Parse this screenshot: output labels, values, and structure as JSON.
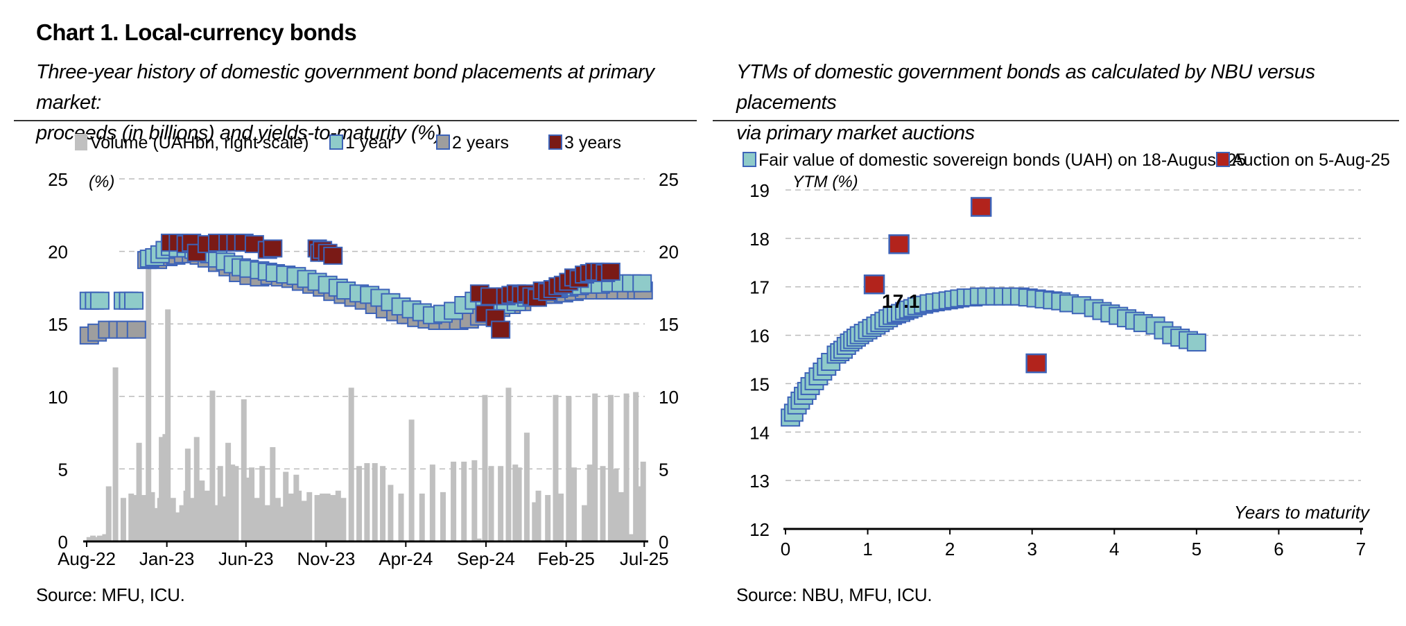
{
  "header": {
    "title": "Chart 1. Local-currency bonds",
    "subtitle_left_1": "Three-year history of domestic government bond placements at primary market:",
    "subtitle_left_2": "proceeds (in billions) and yields-to-maturity (%)",
    "subtitle_right_1": "YTMs of domestic government bonds as calculated by NBU versus placements",
    "subtitle_right_2": "via primary market auctions",
    "source_left": "Source: MFU, ICU.",
    "source_right": "Source: NBU, MFU, ICU."
  },
  "chart_data": [
    {
      "type": "bar+scatter",
      "yunit": "(%)",
      "ylim": [
        0,
        25
      ],
      "y2lim": [
        0,
        25
      ],
      "xlim": [
        0,
        1065
      ],
      "grid": true,
      "legend_position": "top",
      "x_tick_labels": [
        {
          "label": "Aug-22",
          "x": 0
        },
        {
          "label": "Jan-23",
          "x": 153
        },
        {
          "label": "Jun-23",
          "x": 304
        },
        {
          "label": "Nov-23",
          "x": 457
        },
        {
          "label": "Apr-24",
          "x": 609
        },
        {
          "label": "Sep-24",
          "x": 762
        },
        {
          "label": "Feb-25",
          "x": 915
        },
        {
          "label": "Jul-25",
          "x": 1064
        }
      ],
      "y_ticks": [
        0,
        5,
        10,
        15,
        20,
        25
      ],
      "legend": [
        {
          "name": "Volume (UAHbn, right scale)",
          "color": "#c0c0c0",
          "marker": "bar"
        },
        {
          "name": "1 year",
          "color": "#8fcbc9",
          "marker": "square"
        },
        {
          "name": "2 years",
          "color": "#9e9e9e",
          "marker": "square"
        },
        {
          "name": "3 years",
          "color": "#7a1a16",
          "marker": "square"
        }
      ],
      "series": [
        {
          "name": "Volume (UAHbn, right scale)",
          "x": [
            5,
            12,
            20,
            25,
            35,
            42,
            55,
            70,
            85,
            95,
            100,
            108,
            118,
            125,
            133,
            140,
            143,
            150,
            155,
            165,
            172,
            182,
            190,
            193,
            200,
            210,
            220,
            230,
            240,
            245,
            255,
            263,
            270,
            278,
            285,
            300,
            308,
            315,
            325,
            335,
            345,
            355,
            365,
            372,
            380,
            390,
            400,
            405,
            415,
            425,
            440,
            450,
            460,
            470,
            480,
            490,
            505,
            520,
            535,
            550,
            565,
            580,
            600,
            620,
            640,
            660,
            680,
            700,
            720,
            740,
            748,
            760,
            772,
            790,
            805,
            818,
            825,
            840,
            855,
            862,
            880,
            895,
            905,
            920,
            930,
            950,
            960,
            970,
            985,
            1000,
            1010,
            1020,
            1030,
            1040,
            1048,
            1056,
            1062
          ],
          "values": [
            0.3,
            0.4,
            0.3,
            0.4,
            0.5,
            3.8,
            12,
            3,
            3.3,
            3.2,
            6.8,
            3.2,
            19,
            3.4,
            2.3,
            3,
            7.2,
            7.4,
            16,
            3,
            2,
            2.5,
            3.5,
            6.4,
            3,
            7.2,
            4.2,
            3.5,
            10.4,
            2.5,
            5.2,
            3.1,
            6.8,
            5.3,
            5.2,
            9.8,
            4.4,
            5.1,
            3,
            5.2,
            2.5,
            6.5,
            3,
            2.4,
            4.8,
            3.3,
            4.6,
            3.5,
            2.8,
            3.4,
            3.2,
            3.3,
            3.3,
            3.2,
            3.5,
            3,
            10.6,
            5.2,
            5.4,
            5.4,
            5.2,
            3.9,
            3.3,
            8.4,
            3.3,
            5.3,
            3.4,
            5.5,
            5.5,
            5.6,
            0.2,
            10.1,
            5.2,
            5.2,
            10.6,
            5.3,
            5.1,
            7.5,
            2.7,
            3.5,
            3.2,
            10.1,
            3.3,
            10,
            5.1,
            2.5,
            5.3,
            10.2,
            5.2,
            10.1,
            5,
            3.4,
            10.2,
            0.5,
            10.3,
            3.8,
            5.5
          ]
        },
        {
          "name": "1 year",
          "x": [
            5,
            15,
            25,
            70,
            80,
            90,
            120,
            130,
            140,
            150,
            160,
            175,
            190,
            205,
            220,
            235,
            250,
            265,
            280,
            295,
            310,
            330,
            345,
            360,
            380,
            400,
            420,
            440,
            460,
            480,
            495,
            520,
            540,
            560,
            580,
            600,
            620,
            640,
            660,
            680,
            700,
            720,
            740,
            760,
            780,
            800,
            820,
            840,
            860,
            880,
            900,
            920,
            940,
            960,
            980,
            1000,
            1020,
            1040,
            1060
          ],
          "values": [
            16.6,
            16.6,
            16.6,
            16.6,
            16.6,
            16.6,
            19.5,
            19.6,
            19.8,
            20.1,
            20.3,
            20.2,
            20.2,
            20.1,
            20,
            19.8,
            19.5,
            19.3,
            19.1,
            18.9,
            18.8,
            18.7,
            18.6,
            18.5,
            18.4,
            18.3,
            18.1,
            17.9,
            17.7,
            17.5,
            17.3,
            17.1,
            17,
            16.8,
            16.5,
            16.2,
            16,
            15.8,
            15.6,
            15.7,
            15.9,
            16.3,
            16.6,
            16.4,
            16.2,
            16.3,
            16.5,
            16.8,
            17,
            17.2,
            17.4,
            17.5,
            17.6,
            17.7,
            17.7,
            17.8,
            17.8,
            17.8,
            17.8
          ]
        },
        {
          "name": "2 years",
          "x": [
            5,
            20,
            40,
            60,
            75,
            95,
            115,
            135,
            155,
            170,
            185,
            200,
            215,
            230,
            250,
            270,
            290,
            310,
            330,
            350,
            370,
            390,
            410,
            430,
            450,
            470,
            490,
            510,
            530,
            550,
            570,
            590,
            610,
            630,
            650,
            670,
            690,
            710,
            730,
            750,
            770,
            790,
            810,
            830,
            850,
            870,
            890,
            910,
            930,
            950,
            970,
            990,
            1010,
            1030,
            1050,
            1062
          ],
          "values": [
            14.2,
            14.4,
            14.6,
            14.6,
            14.6,
            14.6,
            19.4,
            19.4,
            19.6,
            19.7,
            19.8,
            19.8,
            19.7,
            19.5,
            19.2,
            18.9,
            18.5,
            18.3,
            18.2,
            18.3,
            18.2,
            18.1,
            17.9,
            17.7,
            17.5,
            17.2,
            17,
            16.8,
            16.6,
            16.3,
            16,
            15.8,
            15.6,
            15.4,
            15.3,
            15.2,
            15.2,
            15.2,
            15.3,
            15.5,
            15.8,
            16.1,
            16.3,
            16.5,
            16.8,
            17,
            17,
            17.1,
            17.2,
            17.3,
            17.3,
            17.3,
            17.3,
            17.3,
            17.3,
            17.3
          ]
        },
        {
          "name": "3 years",
          "x": [
            160,
            175,
            190,
            200,
            210,
            230,
            250,
            270,
            285,
            300,
            320,
            345,
            355,
            440,
            445,
            450,
            460,
            470,
            750,
            760,
            770,
            780,
            790,
            800,
            810,
            820,
            830,
            840,
            850,
            860,
            870,
            880,
            890,
            900,
            910,
            920,
            930,
            940,
            950,
            960,
            970,
            980,
            990,
            1000
          ],
          "values": [
            20.6,
            20.6,
            20.5,
            20.6,
            19.9,
            20.5,
            20.6,
            20.6,
            20.6,
            20.6,
            20.5,
            20.1,
            20.2,
            20.2,
            19.9,
            20.1,
            19.9,
            19.7,
            17.1,
            15.7,
            16.9,
            15.4,
            14.6,
            16.9,
            17.0,
            17.1,
            17.0,
            17.1,
            16.9,
            16.8,
            17.3,
            17.2,
            17.4,
            17.6,
            17.7,
            17.9,
            18.2,
            18.1,
            18.4,
            18.5,
            18.6,
            18.6,
            18.5,
            18.6
          ]
        }
      ]
    },
    {
      "type": "scatter",
      "xlabel": "Years to maturity",
      "ylabel": "YTM (%)",
      "xlim": [
        0,
        7
      ],
      "ylim": [
        12,
        19
      ],
      "x_ticks": [
        0,
        1,
        2,
        3,
        4,
        5,
        6,
        7
      ],
      "y_ticks": [
        12,
        13,
        14,
        15,
        16,
        17,
        18,
        19
      ],
      "grid": true,
      "legend_position": "top",
      "annotation": "17.1",
      "legend": [
        {
          "name": "Fair value of domestic sovereign bonds (UAH) on 18-August-25",
          "color": "#8fcbc9"
        },
        {
          "name": "Auction on 5-Aug-25",
          "color": "#b2231c"
        }
      ],
      "series": [
        {
          "name": "Fair value of domestic sovereign bonds (UAH) on 18-August-25",
          "x": [
            0.06,
            0.1,
            0.14,
            0.18,
            0.22,
            0.26,
            0.3,
            0.35,
            0.4,
            0.45,
            0.5,
            0.55,
            0.62,
            0.66,
            0.7,
            0.74,
            0.78,
            0.82,
            0.86,
            0.9,
            0.95,
            1.0,
            1.05,
            1.1,
            1.15,
            1.2,
            1.25,
            1.3,
            1.35,
            1.4,
            1.45,
            1.5,
            1.55,
            1.6,
            1.68,
            1.75,
            1.82,
            1.9,
            1.98,
            2.05,
            2.12,
            2.2,
            2.28,
            2.36,
            2.45,
            2.55,
            2.65,
            2.75,
            2.85,
            2.95,
            3.05,
            3.15,
            3.25,
            3.35,
            3.45,
            3.6,
            3.75,
            3.85,
            3.95,
            4.05,
            4.15,
            4.25,
            4.35,
            4.5,
            4.6,
            4.7,
            4.8,
            4.9,
            5.0
          ],
          "values": [
            14.3,
            14.4,
            14.55,
            14.65,
            14.75,
            14.85,
            14.95,
            15.05,
            15.15,
            15.25,
            15.35,
            15.45,
            15.6,
            15.65,
            15.7,
            15.78,
            15.85,
            15.9,
            15.95,
            16.0,
            16.05,
            16.1,
            16.15,
            16.2,
            16.25,
            16.3,
            16.35,
            16.4,
            16.43,
            16.46,
            16.5,
            16.53,
            16.56,
            16.6,
            16.63,
            16.66,
            16.68,
            16.7,
            16.72,
            16.74,
            16.76,
            16.78,
            16.78,
            16.8,
            16.8,
            16.8,
            16.8,
            16.8,
            16.8,
            16.78,
            16.76,
            16.74,
            16.72,
            16.7,
            16.66,
            16.62,
            16.56,
            16.5,
            16.45,
            16.4,
            16.35,
            16.3,
            16.25,
            16.2,
            16.1,
            16.0,
            15.95,
            15.9,
            15.85
          ]
        },
        {
          "name": "Auction on 5-Aug-25",
          "x": [
            1.08,
            1.38,
            2.38,
            3.05
          ],
          "values": [
            17.05,
            17.88,
            18.65,
            15.42
          ]
        }
      ]
    }
  ]
}
